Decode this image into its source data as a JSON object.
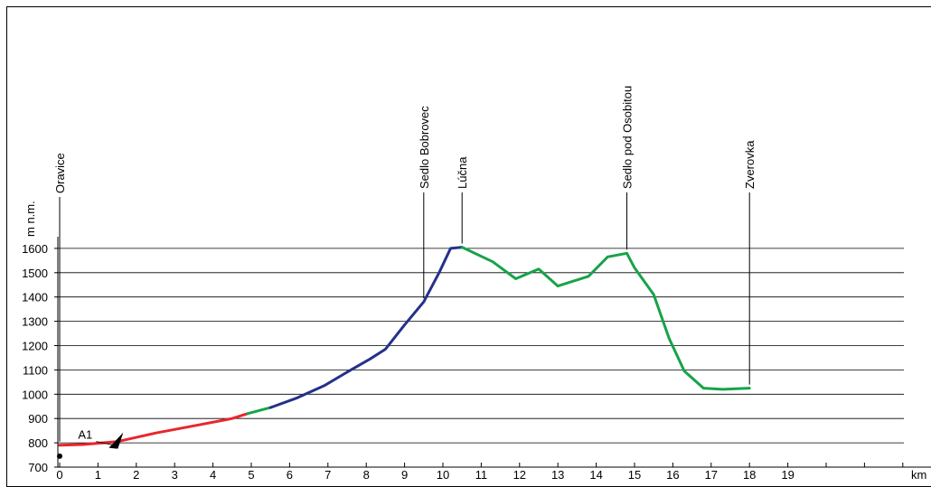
{
  "chart_data": {
    "type": "line",
    "title": "",
    "xlabel": "km",
    "ylabel": "m n.m.",
    "xlim": [
      0,
      21
    ],
    "ylim": [
      700,
      1600
    ],
    "grid": true,
    "x_ticks": [
      "0",
      "1",
      "2",
      "3",
      "4",
      "5",
      "6",
      "7",
      "8",
      "9",
      "10",
      "11",
      "12",
      "13",
      "14",
      "15",
      "16",
      "17",
      "18",
      "19",
      "",
      "",
      ""
    ],
    "y_ticks": [
      "700",
      "800",
      "900",
      "1000",
      "1100",
      "1200",
      "1300",
      "1400",
      "1500",
      "1600"
    ],
    "colors": {
      "red": "#e8262b",
      "green": "#17a34a",
      "blue": "#24318a"
    },
    "series": [
      {
        "color": "red",
        "x": [
          0,
          0.6,
          1.5,
          2.5,
          3.5,
          4.5,
          4.9
        ],
        "y": [
          790,
          793,
          805,
          840,
          870,
          900,
          920
        ]
      },
      {
        "color": "green",
        "x": [
          4.9,
          5.5
        ],
        "y": [
          920,
          945
        ]
      },
      {
        "color": "blue",
        "x": [
          5.5,
          6.2,
          6.9,
          7.6,
          8.1,
          8.5,
          9.0,
          9.5,
          9.9,
          10.2,
          10.5
        ],
        "y": [
          945,
          985,
          1035,
          1100,
          1145,
          1185,
          1285,
          1380,
          1500,
          1600,
          1605
        ]
      },
      {
        "color": "green",
        "x": [
          10.5,
          11.3,
          11.9,
          12.5,
          13.0,
          13.8,
          14.3,
          14.8,
          15.0,
          15.5,
          15.9,
          16.3,
          16.8,
          17.3,
          18.0
        ],
        "y": [
          1605,
          1545,
          1475,
          1515,
          1445,
          1485,
          1565,
          1580,
          1520,
          1410,
          1230,
          1095,
          1025,
          1020,
          1025
        ]
      }
    ],
    "start_marker": {
      "x": 0,
      "y": 745
    },
    "locations": [
      {
        "name": "Oravice",
        "x": 0
      },
      {
        "name": "Sedlo Bobrovec",
        "x": 9.5
      },
      {
        "name": "Lúčna",
        "x": 10.5
      },
      {
        "name": "Sedlo pod Osobitou",
        "x": 14.8
      },
      {
        "name": "Zverovka",
        "x": 18.0
      }
    ],
    "annotations": [
      {
        "text": "A1",
        "x": 1.0,
        "y": 835
      }
    ]
  }
}
